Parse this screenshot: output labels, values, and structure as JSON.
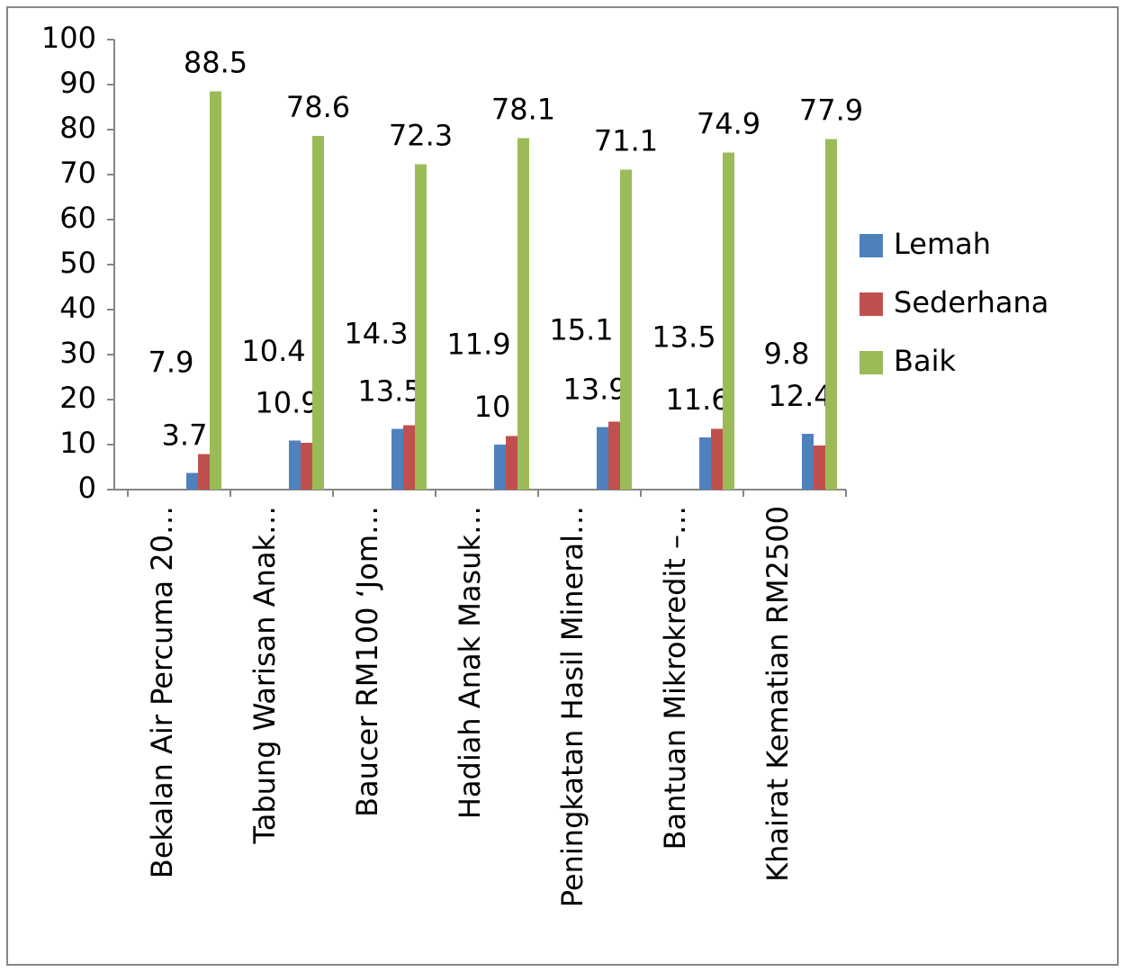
{
  "chart_data": {
    "type": "bar",
    "categories": [
      "Bekalan Air Percuma 20…",
      "Tabung Warisan Anak…",
      "Baucer RM100 ‘Jom…",
      "Hadiah Anak Masuk…",
      "Peningkatan Hasil Mineral…",
      "Bantuan Mikrokredit –…",
      "Khairat Kematian RM2500"
    ],
    "series": [
      {
        "name": "Lemah",
        "color": "#4f81bd",
        "values": [
          3.7,
          10.9,
          13.5,
          10,
          13.9,
          11.6,
          12.4
        ]
      },
      {
        "name": "Sederhana",
        "color": "#c0504d",
        "values": [
          7.9,
          10.4,
          14.3,
          11.9,
          15.1,
          13.5,
          9.8
        ]
      },
      {
        "name": "Baik",
        "color": "#9bbb59",
        "values": [
          88.5,
          78.6,
          72.3,
          78.1,
          71.1,
          74.9,
          77.9
        ]
      }
    ],
    "ylim": [
      0,
      100
    ],
    "yticks": [
      0,
      10,
      20,
      30,
      40,
      50,
      60,
      70,
      80,
      90,
      100
    ],
    "legend": "right"
  }
}
